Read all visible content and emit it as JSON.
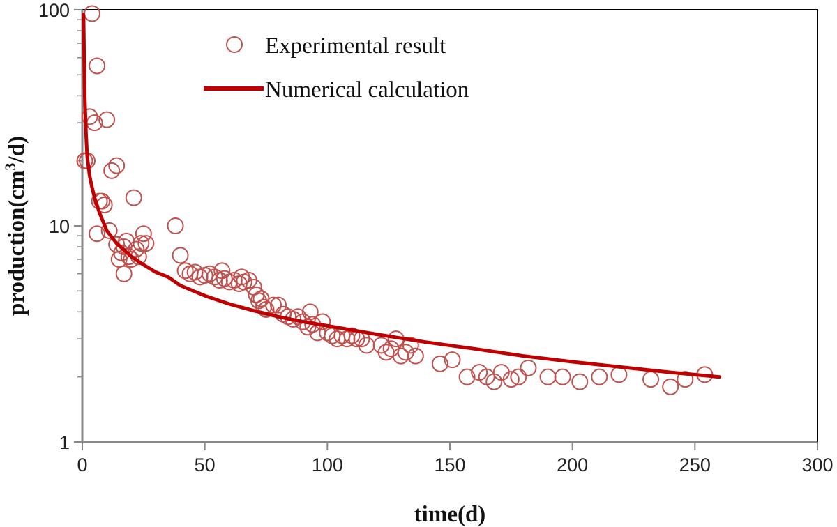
{
  "chart_data": {
    "type": "scatter",
    "title": "",
    "xlabel": "time(d)",
    "ylabel": {
      "prefix": "production(cm",
      "sup": "3",
      "suffix": "/d)"
    },
    "xlim": [
      0,
      300
    ],
    "ylim": [
      1,
      100
    ],
    "yscale": "log",
    "grid": false,
    "legend_position": "top-left",
    "x_ticks": [
      {
        "value": 0,
        "label": "0"
      },
      {
        "value": 50,
        "label": "50"
      },
      {
        "value": 100,
        "label": "100"
      },
      {
        "value": 150,
        "label": "150"
      },
      {
        "value": 200,
        "label": "200"
      },
      {
        "value": 250,
        "label": "250"
      },
      {
        "value": 300,
        "label": "300"
      }
    ],
    "y_ticks": [
      {
        "value": 1,
        "label": "1"
      },
      {
        "value": 10,
        "label": "10"
      },
      {
        "value": 100,
        "label": "100"
      }
    ],
    "y_minor_ticks": [
      2,
      3,
      4,
      5,
      6,
      7,
      8,
      9,
      20,
      30,
      40,
      50,
      60,
      70,
      80,
      90
    ],
    "colors": {
      "scatter": "#c0504d",
      "line": "#c00000",
      "axis": "#888888",
      "frame": "#000000"
    },
    "series": [
      {
        "name": "Experimental result",
        "kind": "scatter",
        "x": [
          4,
          6,
          2,
          3,
          5,
          10,
          1,
          8,
          12,
          14,
          7,
          9,
          21,
          6,
          11,
          15,
          16,
          17,
          18,
          14,
          19,
          20,
          24,
          25,
          26,
          22,
          23,
          17,
          38,
          40,
          42,
          44,
          46,
          48,
          50,
          52,
          54,
          56,
          57,
          58,
          60,
          62,
          64,
          65,
          66,
          68,
          70,
          71,
          72,
          73,
          74,
          75,
          78,
          80,
          82,
          84,
          86,
          88,
          90,
          92,
          93,
          94,
          96,
          98,
          100,
          102,
          104,
          106,
          108,
          110,
          112,
          114,
          116,
          122,
          124,
          126,
          128,
          130,
          132,
          134,
          136,
          146,
          151,
          157,
          162,
          165,
          168,
          171,
          175,
          178,
          182,
          190,
          196,
          203,
          211,
          219,
          232,
          240,
          246,
          254
        ],
        "y": [
          96,
          55,
          20,
          32,
          30,
          31,
          20,
          13,
          18,
          19,
          13,
          12.5,
          13.5,
          9.2,
          9.5,
          7,
          7.5,
          8,
          8.5,
          8.2,
          7.2,
          7,
          8.3,
          9.2,
          8.3,
          7.8,
          7.2,
          6,
          10,
          7.3,
          6.2,
          6,
          6.1,
          5.8,
          5.9,
          6,
          5.8,
          5.6,
          6.2,
          5.7,
          5.5,
          5.6,
          5.4,
          5.8,
          5.5,
          5.6,
          5.2,
          4.8,
          4.5,
          4.6,
          4.2,
          4.1,
          4.3,
          4.3,
          3.9,
          3.8,
          3.7,
          3.8,
          3.6,
          3.4,
          4,
          3.5,
          3.2,
          3.6,
          3.2,
          3.1,
          3.0,
          3.1,
          3.0,
          3.1,
          3.0,
          3.0,
          2.8,
          2.8,
          2.6,
          2.7,
          3.0,
          2.5,
          2.6,
          2.8,
          2.5,
          2.3,
          2.4,
          2.0,
          2.1,
          2.0,
          1.9,
          2.1,
          1.95,
          2.0,
          2.2,
          2.0,
          2.0,
          1.9,
          2.0,
          2.05,
          1.95,
          1.8,
          1.95,
          2.05
        ]
      },
      {
        "name": "Numerical calculation",
        "kind": "line",
        "x": [
          0.5,
          1,
          1.5,
          2,
          3,
          4,
          5,
          7,
          10,
          14,
          20,
          25,
          30,
          35,
          40,
          50,
          60,
          70,
          80,
          90,
          100,
          120,
          140,
          160,
          180,
          200,
          220,
          240,
          260
        ],
        "y": [
          95,
          40,
          27,
          21,
          17,
          15,
          13.5,
          11.5,
          9.5,
          8.3,
          7.2,
          6.6,
          6.1,
          5.8,
          5.3,
          4.75,
          4.35,
          4.05,
          3.8,
          3.6,
          3.45,
          3.15,
          2.9,
          2.7,
          2.5,
          2.35,
          2.22,
          2.1,
          2.0
        ]
      }
    ]
  }
}
